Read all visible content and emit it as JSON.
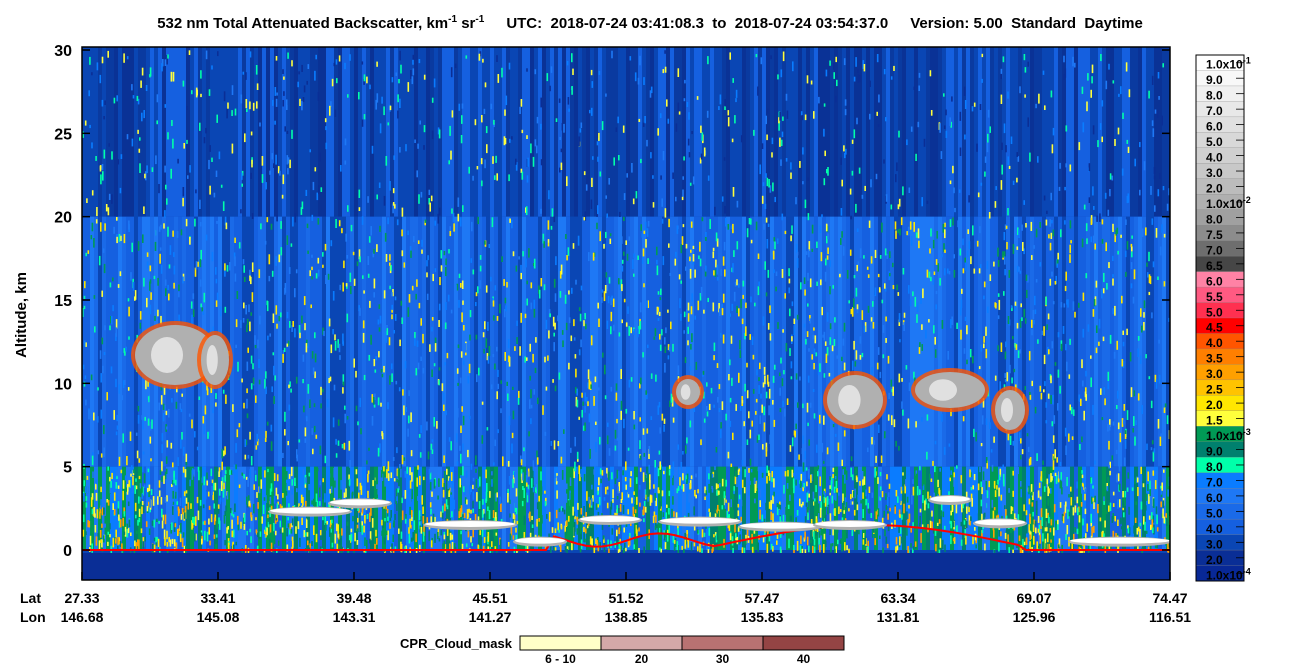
{
  "chart_data": {
    "type": "heatmap",
    "title": {
      "main": "532 nm Total Attenuated Backscatter, km",
      "sup1": "-1",
      "mid": " sr",
      "sup2": "-1",
      "utc": "UTC:  2018-07-24 03:41:08.3  to  2018-07-24 03:54:37.0",
      "version": "Version: 5.00  Standard  Daytime"
    },
    "y_label": "Altitude, km",
    "ylim": [
      -1.8,
      30
    ],
    "yticks": [
      0,
      5,
      10,
      15,
      20,
      25,
      30
    ],
    "x_row_labels": [
      "Lat",
      "Lon"
    ],
    "lat": [
      "27.33",
      "33.41",
      "39.48",
      "45.51",
      "51.52",
      "57.47",
      "63.34",
      "69.07",
      "74.47"
    ],
    "lon": [
      "146.68",
      "145.08",
      "143.31",
      "141.27",
      "138.85",
      "135.83",
      "131.81",
      "125.96",
      "116.51"
    ],
    "colorbar": {
      "labels": [
        {
          "text": "1.0x10",
          "sup": "-1"
        },
        "9.0",
        "8.0",
        "7.0",
        "6.0",
        "5.0",
        "4.0",
        "3.0",
        "2.0",
        {
          "text": "1.0x10",
          "sup": "-2"
        },
        "8.0",
        "7.5",
        "7.0",
        "6.5",
        "6.0",
        "5.5",
        "5.0",
        "4.5",
        "4.0",
        "3.5",
        "3.0",
        "2.5",
        "2.0",
        "1.5",
        {
          "text": "1.0x10",
          "sup": "-3"
        },
        "9.0",
        "8.0",
        "7.0",
        "6.0",
        "5.0",
        "4.0",
        "3.0",
        "2.0",
        {
          "text": "1.0x10",
          "sup": "-4"
        }
      ],
      "colors": [
        "#ffffff",
        "#f8f8f8",
        "#f0f0f0",
        "#e8e8e8",
        "#e0e0e0",
        "#d8d8d8",
        "#d0d0d0",
        "#c8c8c8",
        "#bcbcbc",
        "#b0b0b0",
        "#a0a0a0",
        "#8c8c8c",
        "#6e6e6e",
        "#464646",
        "#ff82a5",
        "#ff5a82",
        "#ff3050",
        "#ff0000",
        "#ff5500",
        "#ff7f00",
        "#ffa000",
        "#ffc300",
        "#ffe600",
        "#ffff3c",
        "#009a55",
        "#00806e",
        "#00ffaa",
        "#0a7cff",
        "#1e78f5",
        "#1a6ae8",
        "#1560e0",
        "#0a46b4",
        "#0a2e96",
        "#082896"
      ]
    },
    "cpr_legend": {
      "title": "CPR_Cloud_mask",
      "labels": [
        "6 - 10",
        "20",
        "30",
        "40"
      ],
      "colors": [
        "#ffffc8",
        "#d4a8a8",
        "#b87272",
        "#944444"
      ]
    }
  }
}
